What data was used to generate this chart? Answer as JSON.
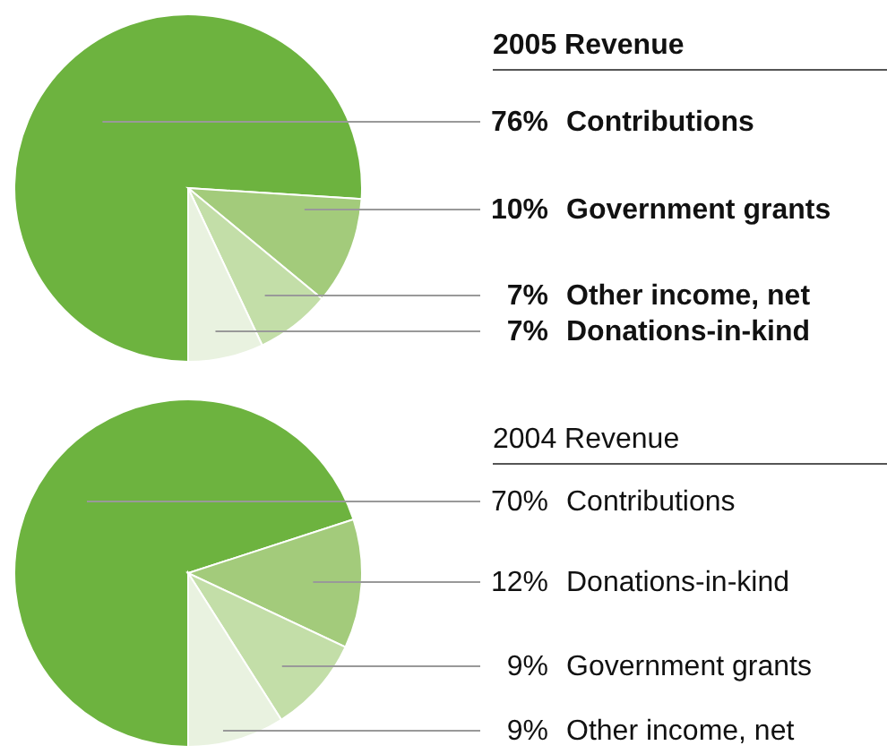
{
  "chart_data": [
    {
      "type": "pie",
      "title": "2005 Revenue",
      "categories": [
        "Contributions",
        "Government grants",
        "Other income, net",
        "Donations-in-kind"
      ],
      "values": [
        76,
        10,
        7,
        7
      ],
      "value_labels": [
        "76%",
        "10%",
        "7%",
        "7%"
      ],
      "colors": [
        "#6db33f",
        "#a3cb7b",
        "#c3dea8",
        "#e9f2e0"
      ]
    },
    {
      "type": "pie",
      "title": "2004 Revenue",
      "categories": [
        "Contributions",
        "Donations-in-kind",
        "Government grants",
        "Other income, net"
      ],
      "values": [
        70,
        12,
        9,
        9
      ],
      "value_labels": [
        "70%",
        "12%",
        "9%",
        "9%"
      ],
      "colors": [
        "#6db33f",
        "#a3cb7b",
        "#c3dea8",
        "#e9f2e0"
      ]
    }
  ]
}
